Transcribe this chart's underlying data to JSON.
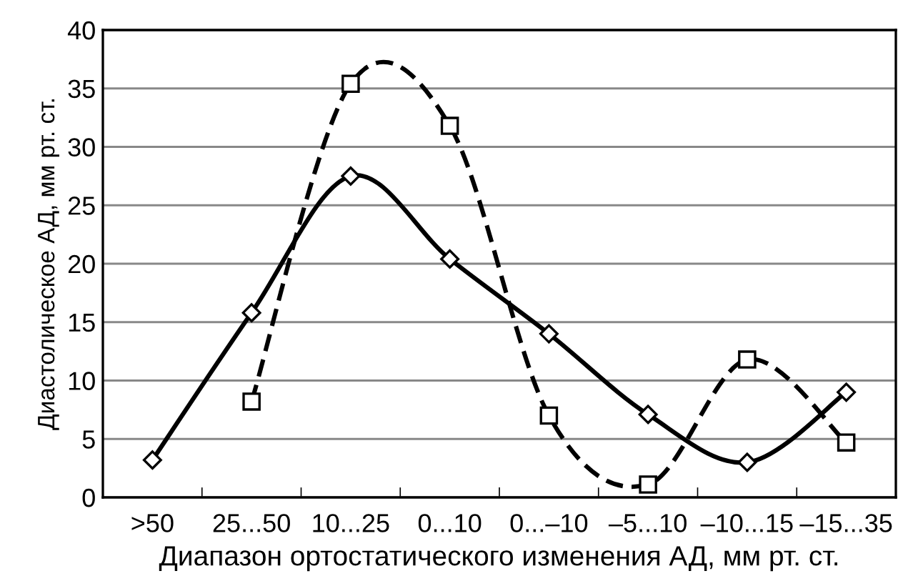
{
  "chart_data": {
    "type": "line",
    "xlabel": "Диапазон ортостатического изменения АД, мм рт. ст.",
    "ylabel": "Диастолическое АД, мм рт. ст.",
    "categories": [
      ">50",
      "25...50",
      "10...25",
      "0...10",
      "0...–10",
      "–5...10",
      "–10...15",
      "–15...35"
    ],
    "series": [
      {
        "color": "#000000",
        "marker": "diamond",
        "line_style": "solid",
        "values": [
          3.2,
          15.8,
          27.5,
          20.4,
          14,
          7.1,
          3,
          9
        ]
      },
      {
        "color": "#000000",
        "marker": "square",
        "line_style": "dashed",
        "values": [
          null,
          8.2,
          35.4,
          31.8,
          7,
          1.1,
          11.8,
          4.7
        ]
      }
    ],
    "ylim": [
      0,
      40
    ],
    "yticks": [
      0,
      5,
      10,
      15,
      20,
      25,
      30,
      35,
      40
    ],
    "grid": "y",
    "legend": false
  }
}
